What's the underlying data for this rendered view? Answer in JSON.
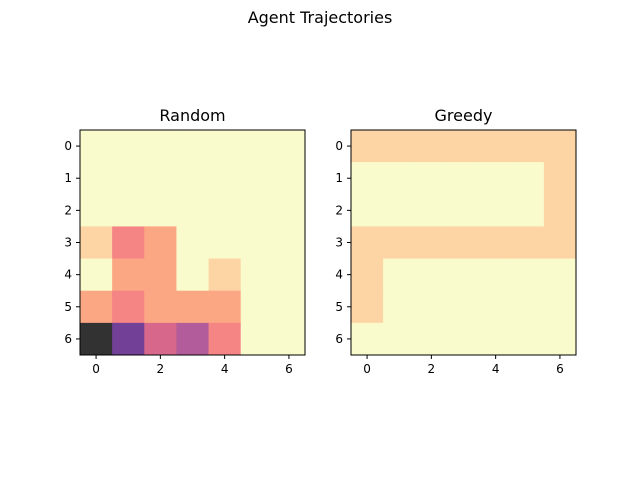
{
  "chart_data": {
    "type": "heatmap",
    "title": "Agent Trajectories",
    "colormap": "magma_r (alpha 0.8)",
    "grid": false,
    "panels": [
      {
        "title": "Random",
        "xticks": [
          "0",
          "2",
          "4",
          "6"
        ],
        "yticks": [
          "0",
          "1",
          "2",
          "3",
          "4",
          "5",
          "6"
        ],
        "values": [
          [
            0,
            0,
            0,
            0,
            0,
            0,
            0
          ],
          [
            0,
            0,
            0,
            0,
            0,
            0,
            0
          ],
          [
            0,
            0,
            0,
            0,
            0,
            0,
            0
          ],
          [
            1,
            3,
            2,
            0,
            0,
            0,
            0
          ],
          [
            0,
            2,
            2,
            0,
            1,
            0,
            0
          ],
          [
            2,
            3,
            2,
            2,
            2,
            0,
            0
          ],
          [
            9,
            7,
            5,
            6,
            3,
            0,
            0
          ]
        ]
      },
      {
        "title": "Greedy",
        "xticks": [
          "0",
          "2",
          "4",
          "6"
        ],
        "yticks": [
          "0",
          "1",
          "2",
          "3",
          "4",
          "5",
          "6"
        ],
        "values": [
          [
            1,
            1,
            1,
            1,
            1,
            1,
            1
          ],
          [
            0,
            0,
            0,
            0,
            0,
            0,
            1
          ],
          [
            0,
            0,
            0,
            0,
            0,
            0,
            1
          ],
          [
            1,
            1,
            1,
            1,
            1,
            1,
            1
          ],
          [
            1,
            0,
            0,
            0,
            0,
            0,
            0
          ],
          [
            1,
            0,
            0,
            0,
            0,
            0,
            0
          ],
          [
            0,
            0,
            0,
            0,
            0,
            0,
            0
          ]
        ]
      }
    ],
    "palette": {
      "0": "#f9fbcc",
      "1": "#fdd4a3",
      "2": "#fca783",
      "3": "#f58485",
      "5": "#d7678b",
      "6": "#b25c9b",
      "7": "#724097",
      "9": "#323232"
    }
  }
}
